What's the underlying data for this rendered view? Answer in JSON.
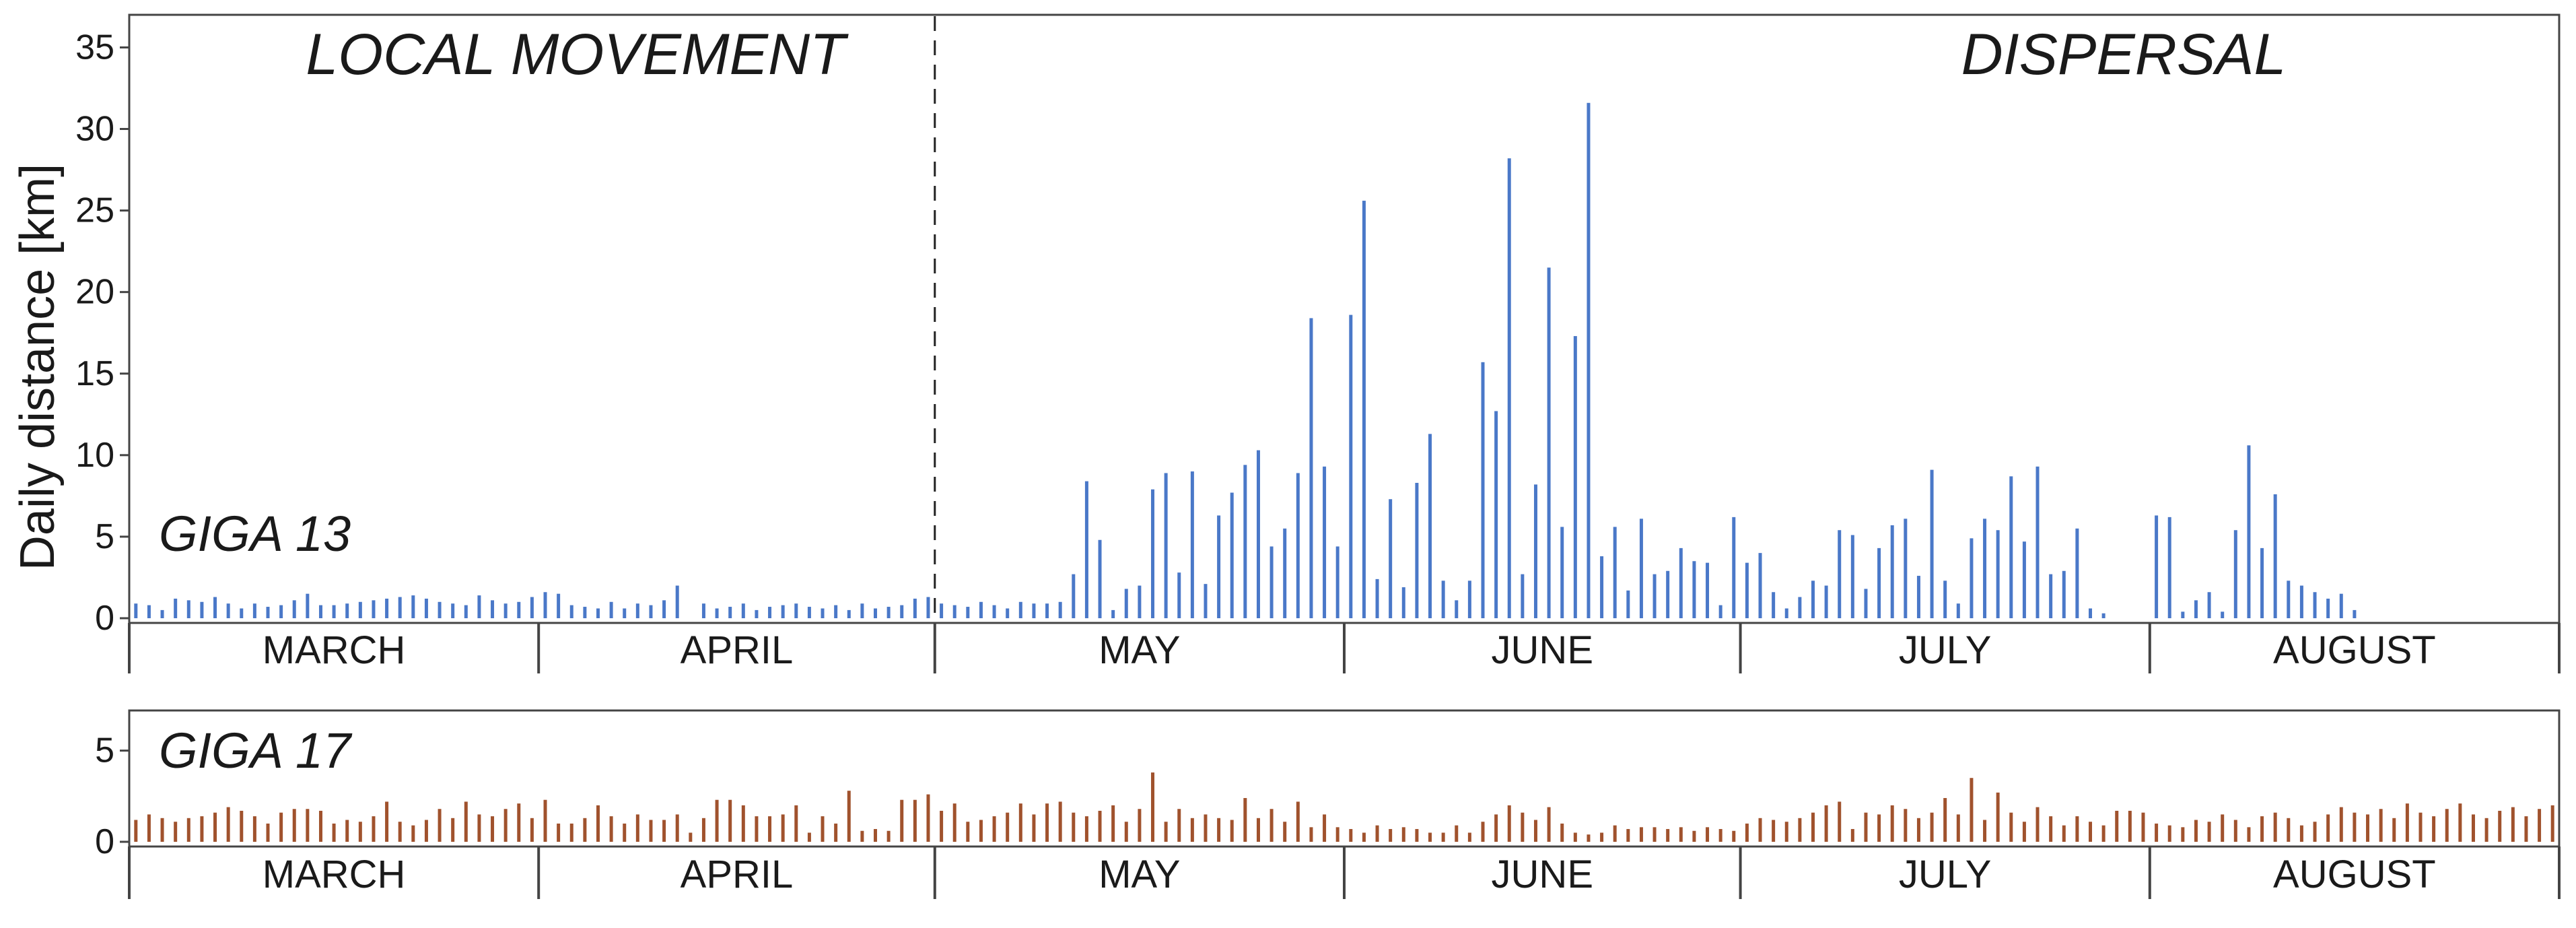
{
  "chart_data": [
    {
      "type": "bar",
      "panel": "top",
      "series_name": "GIGA 13",
      "ylabel": "Daily distance [km]",
      "ylim": [
        0,
        37
      ],
      "yticks": [
        0,
        5,
        10,
        15,
        20,
        25,
        30,
        35
      ],
      "months": [
        "MARCH",
        "APRIL",
        "MAY",
        "JUNE",
        "JULY",
        "AUGUST"
      ],
      "month_days": [
        31,
        30,
        31,
        30,
        31,
        31
      ],
      "phase_labels": [
        "LOCAL MOVEMENT",
        "DISPERSAL"
      ],
      "phase_change_day": 61,
      "color": "#4a78c8",
      "values": [
        0.9,
        0.8,
        0.5,
        1.2,
        1.1,
        1.0,
        1.3,
        0.9,
        0.6,
        0.9,
        0.7,
        0.8,
        1.1,
        1.5,
        0.8,
        0.8,
        0.9,
        1.0,
        1.1,
        1.2,
        1.3,
        1.4,
        1.2,
        1.0,
        0.9,
        0.8,
        1.4,
        1.1,
        0.9,
        1.0,
        1.3,
        1.6,
        1.5,
        0.8,
        0.7,
        0.6,
        1.0,
        0.6,
        0.9,
        0.8,
        1.1,
        2.0,
        0.0,
        0.9,
        0.6,
        0.7,
        0.9,
        0.5,
        0.7,
        0.8,
        0.9,
        0.7,
        0.6,
        0.8,
        0.5,
        0.9,
        0.6,
        0.7,
        0.8,
        1.2,
        1.3,
        0.9,
        0.8,
        0.7,
        1.0,
        0.8,
        0.6,
        1.0,
        0.9,
        0.9,
        1.0,
        2.7,
        8.4,
        4.8,
        0.5,
        1.8,
        2.0,
        7.9,
        8.9,
        2.8,
        9.0,
        2.1,
        6.3,
        7.7,
        9.4,
        10.3,
        4.4,
        5.5,
        8.9,
        18.4,
        9.3,
        4.4,
        18.6,
        25.6,
        2.4,
        7.3,
        1.9,
        8.3,
        11.3,
        2.3,
        1.1,
        2.3,
        15.7,
        12.7,
        28.2,
        2.7,
        8.2,
        21.5,
        5.6,
        17.3,
        31.6,
        3.8,
        5.6,
        1.7,
        6.1,
        2.7,
        2.9,
        4.3,
        3.5,
        3.4,
        0.8,
        6.2,
        3.4,
        4.0,
        1.6,
        0.6,
        1.3,
        2.3,
        2.0,
        5.4,
        5.1,
        1.8,
        4.3,
        5.7,
        6.1,
        2.6,
        9.1,
        2.3,
        0.9,
        4.9,
        6.1,
        5.4,
        8.7,
        4.7,
        9.3,
        2.7,
        2.9,
        5.5,
        0.6,
        0.3,
        0.0,
        0.0,
        0.0,
        6.3,
        6.2,
        0.4,
        1.1,
        1.6,
        0.4,
        5.4,
        10.6,
        4.3,
        7.6,
        2.3,
        2.0,
        1.6,
        1.2,
        1.5,
        0.5,
        0.0,
        0.0,
        0.0,
        0.0,
        0.0,
        0.0,
        0.0,
        0.0,
        0.0,
        0.0,
        0.0,
        0.0,
        0.0,
        0.0,
        0.0
      ]
    },
    {
      "type": "bar",
      "panel": "bottom",
      "series_name": "GIGA 17",
      "ylim": [
        0,
        7.2
      ],
      "yticks": [
        0,
        5
      ],
      "months": [
        "MARCH",
        "APRIL",
        "MAY",
        "JUNE",
        "JULY",
        "AUGUST"
      ],
      "month_days": [
        31,
        30,
        31,
        30,
        31,
        31
      ],
      "color": "#a0522d",
      "values": [
        1.2,
        1.5,
        1.3,
        1.1,
        1.3,
        1.4,
        1.6,
        1.9,
        1.7,
        1.4,
        1.0,
        1.6,
        1.8,
        1.8,
        1.7,
        1.0,
        1.2,
        1.1,
        1.4,
        2.2,
        1.1,
        0.9,
        1.2,
        1.8,
        1.3,
        2.2,
        1.5,
        1.4,
        1.8,
        2.1,
        1.3,
        2.3,
        1.0,
        1.0,
        1.3,
        2.0,
        1.4,
        1.0,
        1.5,
        1.2,
        1.2,
        1.5,
        0.5,
        1.3,
        2.3,
        2.3,
        2.0,
        1.4,
        1.4,
        1.5,
        2.0,
        0.5,
        1.4,
        1.0,
        2.8,
        0.6,
        0.7,
        0.6,
        2.3,
        2.3,
        2.6,
        1.7,
        2.1,
        1.1,
        1.2,
        1.4,
        1.6,
        2.1,
        1.5,
        2.1,
        2.2,
        1.6,
        1.4,
        1.7,
        2.0,
        1.1,
        1.8,
        3.8,
        1.1,
        1.8,
        1.3,
        1.5,
        1.3,
        1.2,
        2.4,
        1.3,
        1.8,
        1.1,
        2.2,
        0.8,
        1.5,
        0.8,
        0.7,
        0.5,
        0.9,
        0.7,
        0.8,
        0.7,
        0.5,
        0.5,
        0.9,
        0.5,
        1.1,
        1.5,
        2.0,
        1.6,
        1.2,
        1.9,
        1.0,
        0.5,
        0.4,
        0.5,
        0.9,
        0.7,
        0.8,
        0.8,
        0.7,
        0.8,
        0.6,
        0.8,
        0.7,
        0.6,
        1.0,
        1.3,
        1.2,
        1.1,
        1.3,
        1.6,
        2.0,
        2.2,
        0.7,
        1.6,
        1.5,
        2.0,
        1.8,
        1.3,
        1.6,
        2.4,
        1.5,
        3.5,
        1.2,
        2.7,
        1.6,
        1.1,
        1.9,
        1.4,
        0.9,
        1.4,
        1.1,
        0.9,
        1.7,
        1.7,
        1.6,
        1.0,
        0.9,
        0.8,
        1.2,
        1.1,
        1.5,
        1.2,
        0.8,
        1.4,
        1.6,
        1.3,
        0.9,
        1.1,
        1.5,
        1.9,
        1.6,
        1.5,
        1.8,
        1.3,
        2.1,
        1.6,
        1.4,
        1.8,
        2.1,
        1.5,
        1.3,
        1.7,
        1.9,
        1.4,
        1.8,
        2.0
      ]
    }
  ]
}
